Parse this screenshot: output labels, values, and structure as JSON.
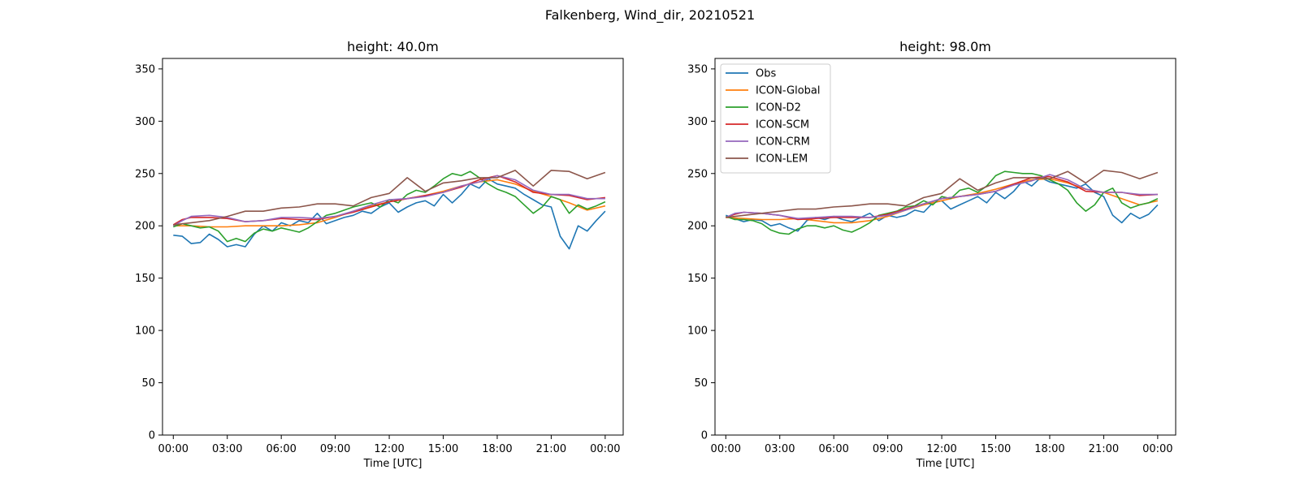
{
  "figure": {
    "title": "Falkenberg, Wind_dir, 20210521"
  },
  "colors": {
    "Obs": "#1f77b4",
    "ICON-Global": "#ff7f0e",
    "ICON-D2": "#2ca02c",
    "ICON-SCM": "#d62728",
    "ICON-CRM": "#9467bd",
    "ICON-LEM": "#8c564b"
  },
  "chart_data": [
    {
      "type": "line",
      "title": "height: 40.0m",
      "xlabel": "Time [UTC]",
      "ylabel": "",
      "xlim": [
        -0.6,
        25
      ],
      "ylim": [
        0,
        360
      ],
      "x_ticks": [
        0,
        3,
        6,
        9,
        12,
        15,
        18,
        21,
        24
      ],
      "x_tick_labels": [
        "00:00",
        "03:00",
        "06:00",
        "09:00",
        "12:00",
        "15:00",
        "18:00",
        "21:00",
        "00:00"
      ],
      "y_ticks": [
        0,
        50,
        100,
        150,
        200,
        250,
        300,
        350
      ],
      "y_tick_labels": [
        "0",
        "50",
        "100",
        "150",
        "200",
        "250",
        "300",
        "350"
      ],
      "legend": null,
      "series": [
        {
          "name": "Obs",
          "x": [
            0,
            0.5,
            1,
            1.5,
            2,
            2.5,
            3,
            3.5,
            4,
            4.5,
            5,
            5.5,
            6,
            6.5,
            7,
            7.5,
            8,
            8.5,
            9,
            9.5,
            10,
            10.5,
            11,
            11.5,
            12,
            12.5,
            13,
            13.5,
            14,
            14.5,
            15,
            15.5,
            16,
            16.5,
            17,
            17.5,
            18,
            18.5,
            19,
            19.5,
            20,
            20.5,
            21,
            21.5,
            22,
            22.5,
            23,
            23.5,
            24
          ],
          "y": [
            191,
            190,
            183,
            184,
            192,
            187,
            180,
            182,
            180,
            192,
            200,
            195,
            203,
            200,
            205,
            203,
            212,
            202,
            205,
            208,
            210,
            214,
            212,
            218,
            222,
            213,
            218,
            222,
            224,
            219,
            230,
            222,
            230,
            240,
            236,
            245,
            240,
            238,
            236,
            230,
            225,
            220,
            218,
            190,
            178,
            200,
            195,
            205,
            214
          ]
        },
        {
          "name": "ICON-Global",
          "x": [
            0,
            1,
            2,
            3,
            4,
            5,
            6,
            7,
            8,
            9,
            10,
            11,
            12,
            13,
            14,
            15,
            16,
            17,
            18,
            19,
            20,
            21,
            22,
            23,
            24
          ],
          "y": [
            200,
            200,
            199,
            199,
            200,
            200,
            200,
            201,
            203,
            208,
            214,
            219,
            223,
            226,
            229,
            233,
            238,
            242,
            244,
            240,
            233,
            228,
            222,
            215,
            219
          ]
        },
        {
          "name": "ICON-D2",
          "x": [
            0,
            0.5,
            1,
            1.5,
            2,
            2.5,
            3,
            3.5,
            4,
            4.5,
            5,
            5.5,
            6,
            6.5,
            7,
            7.5,
            8,
            8.5,
            9,
            9.5,
            10,
            10.5,
            11,
            11.5,
            12,
            12.5,
            13,
            13.5,
            14,
            14.5,
            15,
            15.5,
            16,
            16.5,
            17,
            17.5,
            18,
            18.5,
            19,
            19.5,
            20,
            20.5,
            21,
            21.5,
            22,
            22.5,
            23,
            23.5,
            24
          ],
          "y": [
            199,
            202,
            200,
            198,
            199,
            195,
            185,
            188,
            185,
            193,
            197,
            195,
            198,
            196,
            194,
            198,
            204,
            210,
            212,
            215,
            218,
            220,
            222,
            218,
            225,
            222,
            230,
            234,
            232,
            238,
            245,
            250,
            248,
            252,
            246,
            240,
            235,
            232,
            228,
            220,
            212,
            218,
            228,
            225,
            212,
            220,
            216,
            219,
            223
          ]
        },
        {
          "name": "ICON-SCM",
          "x": [
            0,
            0.5,
            1,
            2,
            3,
            4,
            5,
            6,
            7,
            8,
            9,
            10,
            11,
            12,
            13,
            14,
            15,
            16,
            17,
            18,
            19,
            20,
            21,
            22,
            23,
            24
          ],
          "y": [
            201,
            206,
            208,
            208,
            207,
            204,
            205,
            207,
            206,
            206,
            209,
            213,
            218,
            223,
            226,
            229,
            232,
            237,
            244,
            248,
            242,
            232,
            230,
            229,
            225,
            227
          ]
        },
        {
          "name": "ICON-CRM",
          "x": [
            0,
            0.5,
            1,
            2,
            3,
            4,
            5,
            6,
            7,
            8,
            9,
            10,
            11,
            12,
            13,
            14,
            15,
            16,
            17,
            18,
            19,
            20,
            21,
            22,
            23,
            24
          ],
          "y": [
            200,
            205,
            209,
            210,
            208,
            204,
            205,
            208,
            208,
            207,
            209,
            214,
            220,
            225,
            226,
            228,
            232,
            238,
            242,
            248,
            244,
            234,
            230,
            230,
            226,
            226
          ]
        },
        {
          "name": "ICON-LEM",
          "x": [
            0,
            1,
            2,
            3,
            4,
            5,
            6,
            7,
            8,
            9,
            10,
            11,
            12,
            13,
            14,
            15,
            16,
            17,
            18,
            19,
            20,
            21,
            22,
            23,
            24
          ],
          "y": [
            201,
            203,
            205,
            209,
            214,
            214,
            217,
            218,
            221,
            221,
            219,
            227,
            231,
            246,
            233,
            241,
            243,
            246,
            246,
            253,
            238,
            253,
            252,
            245,
            251
          ]
        }
      ]
    },
    {
      "type": "line",
      "title": "height: 98.0m",
      "xlabel": "Time [UTC]",
      "ylabel": "",
      "xlim": [
        -0.6,
        25
      ],
      "ylim": [
        0,
        360
      ],
      "x_ticks": [
        0,
        3,
        6,
        9,
        12,
        15,
        18,
        21,
        24
      ],
      "x_tick_labels": [
        "00:00",
        "03:00",
        "06:00",
        "09:00",
        "12:00",
        "15:00",
        "18:00",
        "21:00",
        "00:00"
      ],
      "y_ticks": [
        0,
        50,
        100,
        150,
        200,
        250,
        300,
        350
      ],
      "y_tick_labels": [
        "0",
        "50",
        "100",
        "150",
        "200",
        "250",
        "300",
        "350"
      ],
      "legend": "top-left",
      "series": [
        {
          "name": "Obs",
          "x": [
            0,
            0.5,
            1,
            1.5,
            2,
            2.5,
            3,
            3.5,
            4,
            4.5,
            5,
            5.5,
            6,
            6.5,
            7,
            7.5,
            8,
            8.5,
            9,
            9.5,
            10,
            10.5,
            11,
            11.5,
            12,
            12.5,
            13,
            13.5,
            14,
            14.5,
            15,
            15.5,
            16,
            16.5,
            17,
            17.5,
            18,
            18.5,
            19,
            19.5,
            20,
            20.5,
            21,
            21.5,
            22,
            22.5,
            23,
            23.5,
            24
          ],
          "y": [
            210,
            207,
            204,
            206,
            205,
            200,
            202,
            198,
            195,
            205,
            208,
            206,
            209,
            206,
            204,
            208,
            212,
            205,
            210,
            208,
            210,
            215,
            213,
            222,
            224,
            216,
            220,
            224,
            228,
            222,
            232,
            226,
            233,
            243,
            238,
            246,
            242,
            240,
            238,
            236,
            240,
            232,
            228,
            210,
            203,
            212,
            207,
            211,
            220
          ]
        },
        {
          "name": "ICON-Global",
          "x": [
            0,
            1,
            2,
            3,
            4,
            5,
            6,
            7,
            8,
            9,
            10,
            11,
            12,
            13,
            14,
            15,
            16,
            17,
            18,
            19,
            20,
            21,
            22,
            23,
            24
          ],
          "y": [
            208,
            207,
            206,
            206,
            207,
            205,
            203,
            203,
            205,
            209,
            215,
            220,
            224,
            228,
            231,
            235,
            240,
            244,
            245,
            241,
            235,
            232,
            226,
            220,
            224
          ]
        },
        {
          "name": "ICON-D2",
          "x": [
            0,
            0.5,
            1,
            1.5,
            2,
            2.5,
            3,
            3.5,
            4,
            4.5,
            5,
            5.5,
            6,
            6.5,
            7,
            7.5,
            8,
            8.5,
            9,
            9.5,
            10,
            10.5,
            11,
            11.5,
            12,
            12.5,
            13,
            13.5,
            14,
            14.5,
            15,
            15.5,
            16,
            16.5,
            17,
            17.5,
            18,
            18.5,
            19,
            19.5,
            20,
            20.5,
            21,
            21.5,
            22,
            22.5,
            23,
            23.5,
            24
          ],
          "y": [
            209,
            206,
            206,
            205,
            202,
            196,
            193,
            192,
            197,
            200,
            200,
            198,
            200,
            196,
            194,
            198,
            203,
            210,
            212,
            214,
            218,
            219,
            224,
            220,
            228,
            226,
            234,
            236,
            232,
            238,
            248,
            252,
            251,
            250,
            250,
            248,
            244,
            240,
            234,
            222,
            214,
            220,
            232,
            236,
            222,
            217,
            220,
            222,
            226
          ]
        },
        {
          "name": "ICON-SCM",
          "x": [
            0,
            0.5,
            1,
            2,
            3,
            4,
            5,
            6,
            7,
            8,
            9,
            10,
            11,
            12,
            13,
            14,
            15,
            16,
            17,
            18,
            19,
            20,
            21,
            22,
            23,
            24
          ],
          "y": [
            208,
            211,
            213,
            212,
            210,
            206,
            207,
            208,
            208,
            208,
            211,
            216,
            221,
            226,
            228,
            230,
            233,
            240,
            246,
            247,
            242,
            233,
            232,
            232,
            229,
            230
          ]
        },
        {
          "name": "ICON-CRM",
          "x": [
            0,
            0.5,
            1,
            2,
            3,
            4,
            5,
            6,
            7,
            8,
            9,
            10,
            11,
            12,
            13,
            14,
            15,
            16,
            17,
            18,
            19,
            20,
            21,
            22,
            23,
            24
          ],
          "y": [
            208,
            212,
            213,
            212,
            210,
            207,
            208,
            209,
            209,
            208,
            210,
            215,
            221,
            226,
            228,
            230,
            233,
            239,
            243,
            249,
            244,
            235,
            232,
            232,
            230,
            230
          ]
        },
        {
          "name": "ICON-LEM",
          "x": [
            0,
            1,
            2,
            3,
            4,
            5,
            6,
            7,
            8,
            9,
            10,
            11,
            12,
            13,
            14,
            15,
            16,
            17,
            18,
            19,
            20,
            21,
            22,
            23,
            24
          ],
          "y": [
            208,
            210,
            212,
            214,
            216,
            216,
            218,
            219,
            221,
            221,
            219,
            227,
            231,
            245,
            234,
            241,
            246,
            246,
            245,
            252,
            241,
            253,
            251,
            245,
            251
          ]
        }
      ]
    }
  ]
}
